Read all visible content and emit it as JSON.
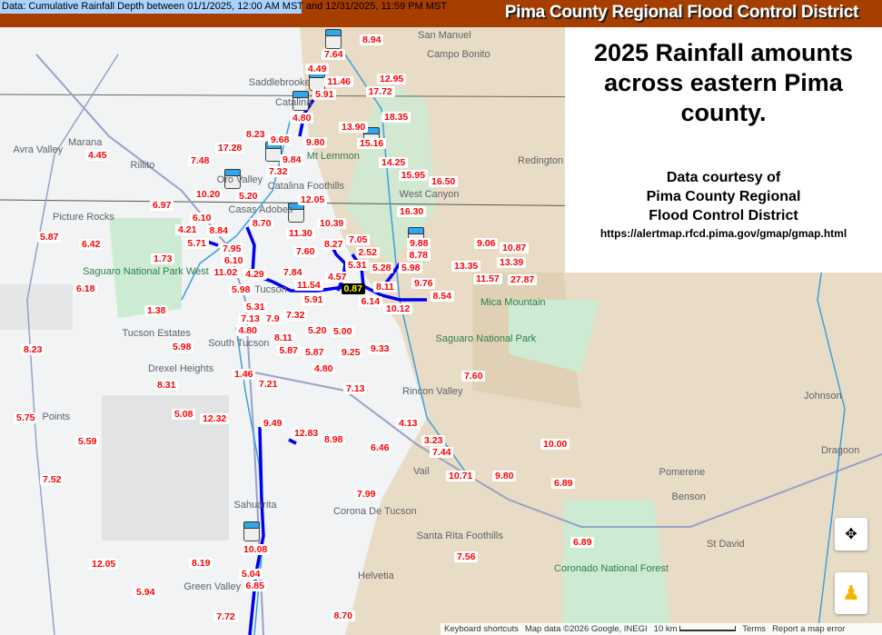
{
  "header": {
    "data_range": "Data: Cumulative Rainfall Depth between 01/1/2025, 12:00 AM MST and 12/31/2025, 11:59 PM MST",
    "agency": "Pima County Regional Flood Control District",
    "bar_color": "#a63e00"
  },
  "panel": {
    "title": "2025 Rainfall amounts across eastern Pima county.",
    "courtesy_1": "Data courtesy of",
    "courtesy_2": "Pima County Regional",
    "courtesy_3": "Flood Control District",
    "url": "https://alertmap.rfcd.pima.gov/gmap/gmap.html"
  },
  "places": [
    "San Manuel",
    "Campo Bonito",
    "Saddlebrooke",
    "Catalina",
    "Mt Lemmon",
    "Avra Valley",
    "Marana",
    "Rillito",
    "Oro Valley",
    "Redington",
    "West Canyon",
    "Picture Rocks",
    "Casas Adobes",
    "Catalina Foothills",
    "Saguaro National Park West",
    "Tucson",
    "Mica Mountain",
    "South Tucson",
    "Tucson Estates",
    "Saguaro National Park",
    "Drexel Heights",
    "Rincon Valley",
    "Johnson",
    "Points",
    "Dragoon",
    "Vail",
    "Pomerene",
    "Benson",
    "Sahuarita",
    "Corona De Tucson",
    "Santa Rita Foothills",
    "St David",
    "Helvetia",
    "Green Valley",
    "Coronado National Forest"
  ],
  "rain_labels": [
    "8.94",
    "7.64",
    "4.49",
    "12.95",
    "17.72",
    "5.91",
    "11.46",
    "4.80",
    "18.35",
    "13.90",
    "8.23",
    "9.68",
    "9.80",
    "15.16",
    "17.28",
    "7.48",
    "9.84",
    "7.32",
    "14.25",
    "15.95",
    "16.50",
    "4.45",
    "10.20",
    "5.20",
    "12.05",
    "6.97",
    "16.30",
    "6.10",
    "4.21",
    "8.84",
    "8.70",
    "10.39",
    "5.71",
    "11.30",
    "5.87",
    "9.88",
    "9.06",
    "10.87",
    "6.42",
    "7.05",
    "8.27",
    "2.52",
    "7.95",
    "6.10",
    "7.60",
    "8.78",
    "1.73",
    "11.02",
    "13.35",
    "13.39",
    "5.98",
    "5.28",
    "5.31",
    "4.29",
    "7.84",
    "11.57",
    "4.57",
    "11.54",
    "27.87",
    "9.76",
    "0.87",
    "8.11",
    "8.54",
    "6.18",
    "5.98",
    "6.14",
    "5.91",
    "10.12",
    "5.31",
    "1.38",
    "7.9",
    "7.32",
    "7.13",
    "4.80",
    "5.20",
    "5.00",
    "8.11",
    "5.98",
    "5.87",
    "5.87",
    "9.25",
    "9.33",
    "8.23",
    "4.80",
    "1.46",
    "7.60",
    "8.31",
    "7.21",
    "7.13",
    "5.75",
    "5.08",
    "12.32",
    "9.49",
    "4.13",
    "12.83",
    "8.98",
    "3.23",
    "7.44",
    "10.00",
    "5.59",
    "6.46",
    "10.71",
    "9.80",
    "6.89",
    "7.52",
    "7.99",
    "7.56",
    "6.89",
    "10.08",
    "12.05",
    "8.19",
    "5.04",
    "6.85",
    "5.94",
    "7.72",
    "8.70"
  ],
  "highlighted_label_index": 60,
  "colors": {
    "label_text": "#ff0000",
    "flow_path": "#0000ee",
    "river": "#3ba0dd",
    "mountains": "#e9dcc6",
    "park": "#cdebd3"
  },
  "footer": {
    "shortcuts": "Keyboard shortcuts",
    "attribution": "Map data ©2026 Google, INEGI",
    "scale": "10 km",
    "terms": "Terms",
    "report": "Report a map error"
  },
  "icons": {
    "gauge": "rain-gauge-icon",
    "locate": "compass-icon",
    "pegman": "street-view-pegman-icon"
  }
}
